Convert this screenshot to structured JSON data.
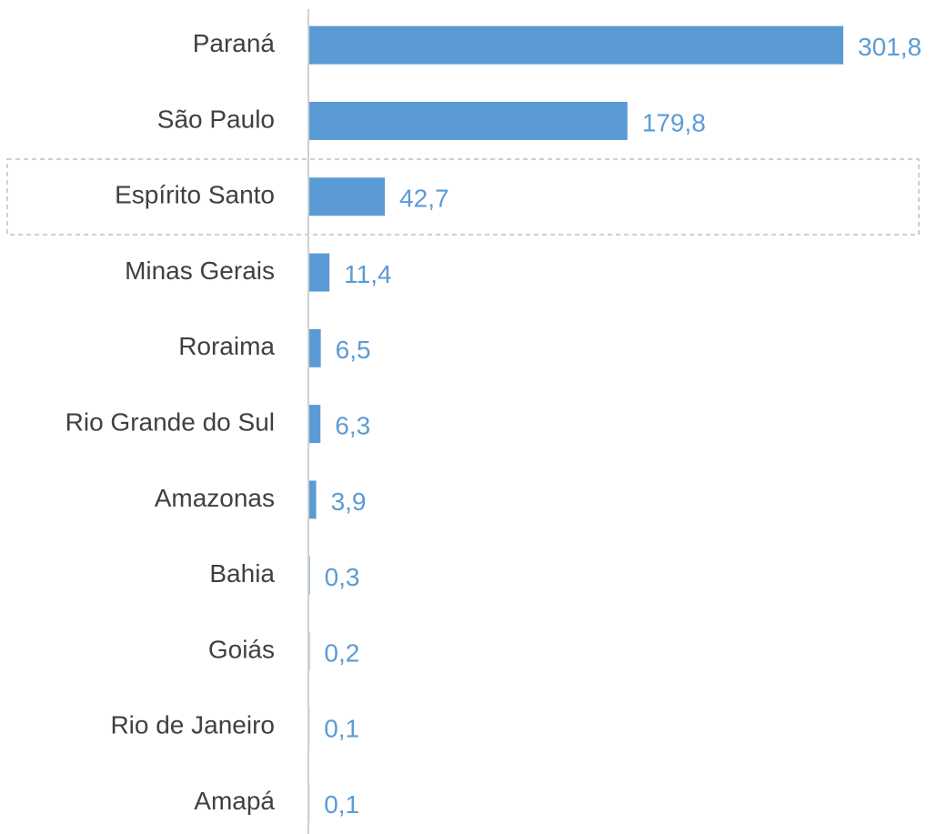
{
  "chart_data": {
    "type": "bar",
    "orientation": "horizontal",
    "categories": [
      "Paraná",
      "São Paulo",
      "Espírito Santo",
      "Minas Gerais",
      "Roraima",
      "Rio Grande do Sul",
      "Amazonas",
      "Bahia",
      "Goiás",
      "Rio de Janeiro",
      "Amapá"
    ],
    "values": [
      301.8,
      179.8,
      42.7,
      11.4,
      6.5,
      6.3,
      3.9,
      0.3,
      0.2,
      0.1,
      0.1
    ],
    "value_labels": [
      "301,8",
      "179,8",
      "42,7",
      "11,4",
      "6,5",
      "6,3",
      "3,9",
      "0,3",
      "0,2",
      "0,1",
      "0,1"
    ],
    "color": "#5b9bd5"
  }
}
